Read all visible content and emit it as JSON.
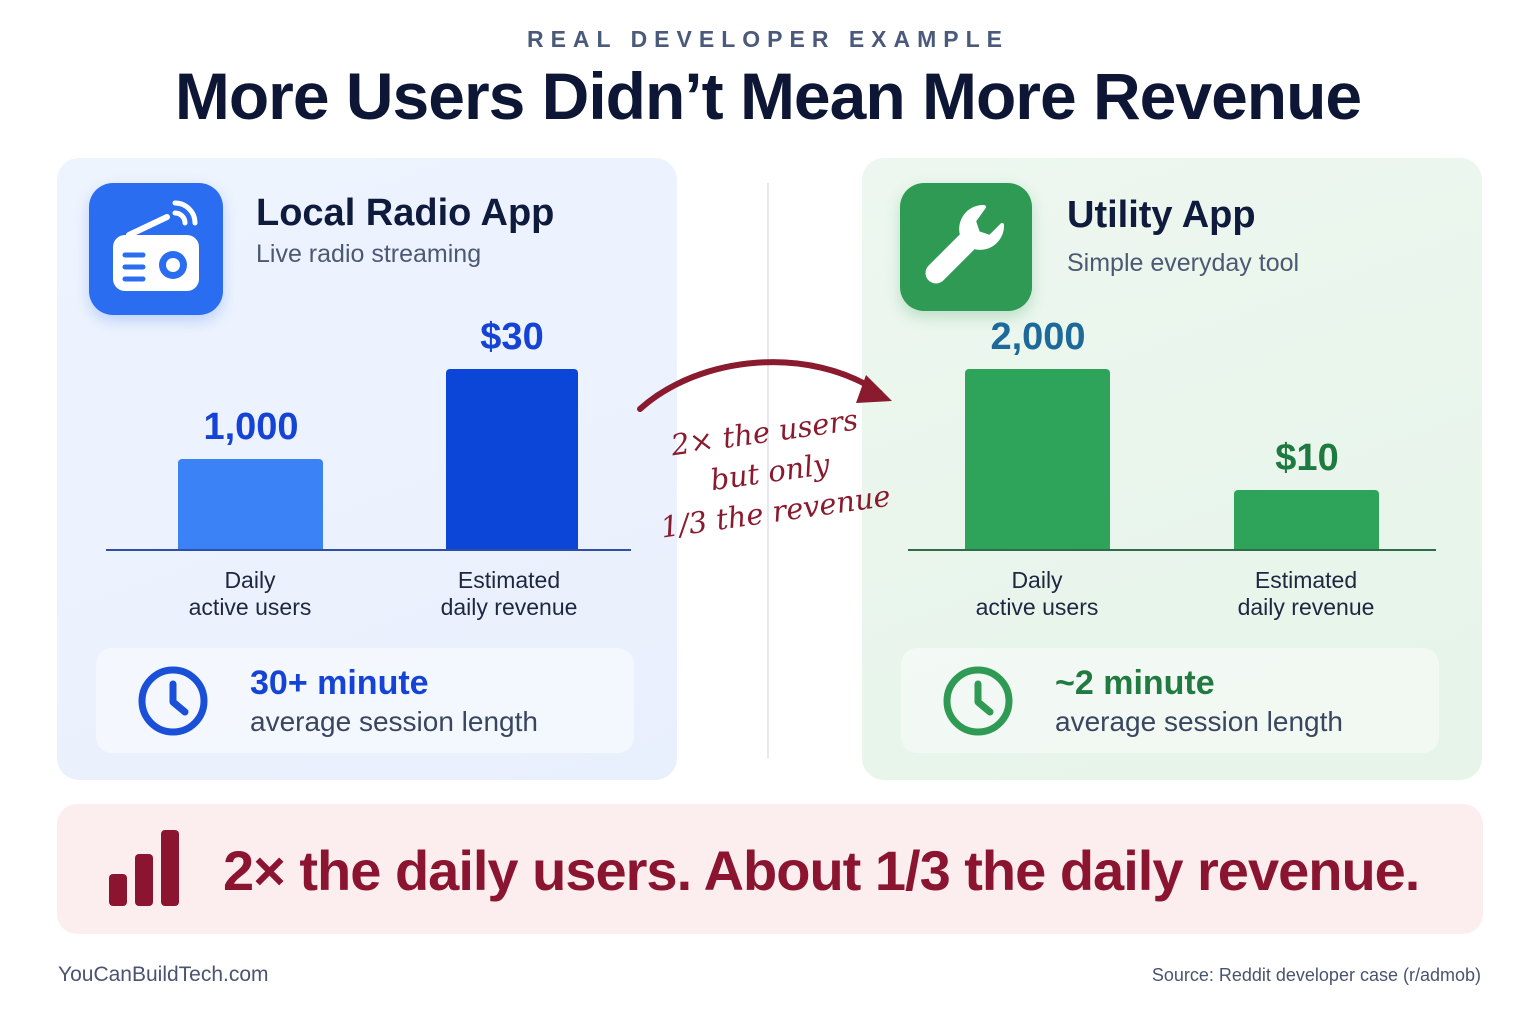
{
  "header": {
    "eyebrow": "REAL DEVELOPER EXAMPLE",
    "title": "More Users Didn’t Mean More Revenue"
  },
  "colors": {
    "blue_light": "#3b82f6",
    "blue_dark": "#0b46d8",
    "green": "#2ea35a",
    "maroon": "#8b1530"
  },
  "apps": [
    {
      "name": "Local Radio App",
      "subtitle": "Live radio streaming",
      "icon": "radio-icon",
      "session_value": "30+ minute",
      "session_label": "average session length",
      "session_icon": "clock-icon"
    },
    {
      "name": "Utility App",
      "subtitle": "Simple everyday tool",
      "icon": "wrench-icon",
      "session_value": "~2 minute",
      "session_label": "average session length",
      "session_icon": "clock-icon"
    }
  ],
  "chart_data": [
    {
      "type": "bar",
      "title": "Local Radio App",
      "categories": [
        "Daily\nactive users",
        "Estimated\ndaily revenue"
      ],
      "values": [
        1000,
        30
      ],
      "value_labels": [
        "1,000",
        "$30"
      ],
      "relative_heights": [
        0.5,
        1.0
      ],
      "grid": false
    },
    {
      "type": "bar",
      "title": "Utility App",
      "categories": [
        "Daily\nactive users",
        "Estimated\ndaily revenue"
      ],
      "values": [
        2000,
        10
      ],
      "value_labels": [
        "2,000",
        "$10"
      ],
      "relative_heights": [
        1.0,
        0.33
      ],
      "grid": false
    }
  ],
  "annotation": {
    "lines": [
      "2× the users",
      "but only",
      "1/3 the revenue"
    ]
  },
  "banner": {
    "text": "2× the daily users. About 1/3 the daily revenue.",
    "icon": "bar-chart-icon"
  },
  "footer": {
    "left": "YouCanBuildTech.com",
    "right": "Source: Reddit developer case (r/admob)"
  }
}
